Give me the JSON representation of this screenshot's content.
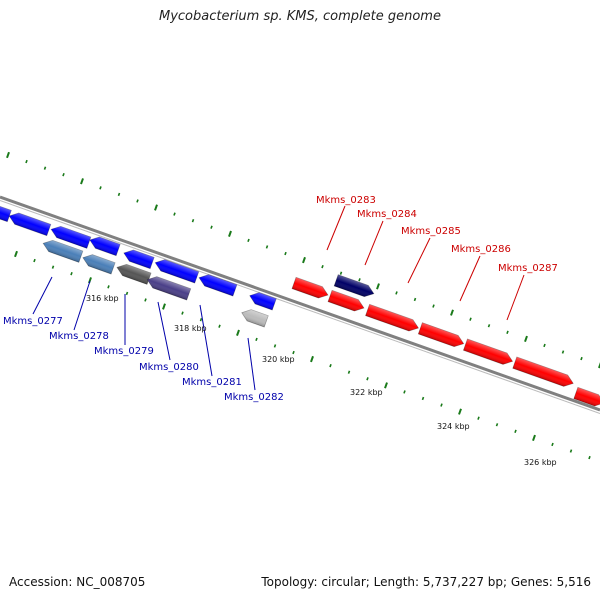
{
  "title": "Mycobacterium sp. KMS, complete genome",
  "footer": {
    "accession": "Accession: NC_008705",
    "summary": "Topology: circular; Length: 5,737,227 bp; Genes: 5,516"
  },
  "colors": {
    "backbone": "#808080",
    "tick": "#1a7a1a",
    "forward_gene": "#ff0000",
    "reverse_gene": "#0000ff",
    "forward_label": "#cc0000",
    "reverse_label": "#0000aa"
  },
  "ruler": {
    "ticks": [
      "316 kbp",
      "318 kbp",
      "320 kbp",
      "322 kbp",
      "324 kbp",
      "326 kbp"
    ]
  },
  "genes": {
    "reverse_strand": [
      {
        "label": "Mkms_0277",
        "color": "#4a7fb8"
      },
      {
        "label": "Mkms_0278",
        "color": "#4a7fb8"
      },
      {
        "label": "Mkms_0279",
        "color": "#555555"
      },
      {
        "label": "Mkms_0280",
        "color": "#4a3f88"
      },
      {
        "label": "Mkms_0281",
        "color": "#0000ff"
      },
      {
        "label": "Mkms_0282",
        "color": "#bbbbbb"
      }
    ],
    "forward_strand": [
      {
        "label": "Mkms_0283",
        "color": "#000066"
      },
      {
        "label": "Mkms_0284",
        "color": "#ff0000"
      },
      {
        "label": "Mkms_0285",
        "color": "#ff0000"
      },
      {
        "label": "Mkms_0286",
        "color": "#ff0000"
      },
      {
        "label": "Mkms_0287",
        "color": "#ff0000"
      }
    ]
  }
}
